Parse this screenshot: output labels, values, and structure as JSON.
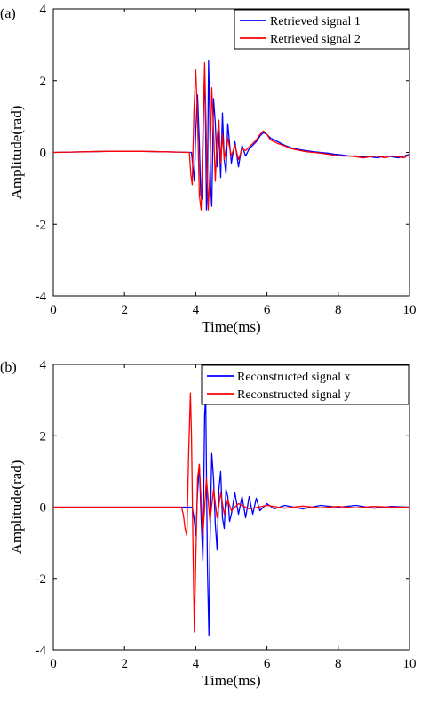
{
  "colors": {
    "signal_a": "#0000ff",
    "signal_b": "#ff0000",
    "axis": "#000000"
  },
  "chart_data": [
    {
      "type": "line",
      "panel_label": "(a)",
      "xlabel": "Time(ms)",
      "ylabel": "Amplitude(rad)",
      "xlim": [
        0,
        10
      ],
      "ylim": [
        -4,
        4
      ],
      "xticks": [
        0,
        2,
        4,
        6,
        8,
        10
      ],
      "yticks": [
        -4,
        -2,
        0,
        2,
        4
      ],
      "grid": false,
      "legend_position": "top-right",
      "series": [
        {
          "name": "Retrieved signal 1",
          "color": "#0000ff",
          "points": [
            [
              0,
              0
            ],
            [
              0.5,
              0.01
            ],
            [
              1,
              0.02
            ],
            [
              1.5,
              0.03
            ],
            [
              2,
              0.03
            ],
            [
              2.5,
              0.03
            ],
            [
              3,
              0.02
            ],
            [
              3.5,
              0.01
            ],
            [
              3.88,
              0
            ],
            [
              3.92,
              -0.4
            ],
            [
              3.96,
              -0.8
            ],
            [
              4.0,
              0.6
            ],
            [
              4.05,
              1.6
            ],
            [
              4.1,
              0.3
            ],
            [
              4.14,
              -1.2
            ],
            [
              4.18,
              -1.3
            ],
            [
              4.22,
              1.2
            ],
            [
              4.25,
              2.2
            ],
            [
              4.28,
              0.5
            ],
            [
              4.3,
              -1.6
            ],
            [
              4.33,
              -0.8
            ],
            [
              4.36,
              2.55
            ],
            [
              4.39,
              1.2
            ],
            [
              4.42,
              -1.0
            ],
            [
              4.45,
              -1.5
            ],
            [
              4.5,
              1.5
            ],
            [
              4.55,
              0.8
            ],
            [
              4.6,
              -0.4
            ],
            [
              4.65,
              0.6
            ],
            [
              4.7,
              -0.7
            ],
            [
              4.75,
              1.1
            ],
            [
              4.8,
              -0.2
            ],
            [
              4.85,
              -0.6
            ],
            [
              4.9,
              0.8
            ],
            [
              5.0,
              -0.3
            ],
            [
              5.1,
              0.3
            ],
            [
              5.2,
              -0.4
            ],
            [
              5.3,
              0.2
            ],
            [
              5.4,
              -0.1
            ],
            [
              5.5,
              0.1
            ],
            [
              5.6,
              0.2
            ],
            [
              5.7,
              0.3
            ],
            [
              5.8,
              0.45
            ],
            [
              5.9,
              0.55
            ],
            [
              6.0,
              0.5
            ],
            [
              6.1,
              0.4
            ],
            [
              6.2,
              0.35
            ],
            [
              6.3,
              0.3
            ],
            [
              6.5,
              0.2
            ],
            [
              6.7,
              0.12
            ],
            [
              6.9,
              0.08
            ],
            [
              7.1,
              0.05
            ],
            [
              7.3,
              0.02
            ],
            [
              7.5,
              0
            ],
            [
              7.7,
              -0.02
            ],
            [
              7.9,
              -0.05
            ],
            [
              8.1,
              -0.07
            ],
            [
              8.3,
              -0.1
            ],
            [
              8.5,
              -0.1
            ],
            [
              8.7,
              -0.12
            ],
            [
              8.9,
              -0.12
            ],
            [
              9.1,
              -0.15
            ],
            [
              9.3,
              -0.1
            ],
            [
              9.5,
              -0.12
            ],
            [
              9.7,
              -0.15
            ],
            [
              9.85,
              -0.1
            ],
            [
              10,
              -0.05
            ]
          ]
        },
        {
          "name": "Retrieved signal 2",
          "color": "#ff0000",
          "points": [
            [
              0,
              0
            ],
            [
              0.5,
              0.01
            ],
            [
              1,
              0.02
            ],
            [
              1.5,
              0.03
            ],
            [
              2,
              0.03
            ],
            [
              2.5,
              0.03
            ],
            [
              3,
              0.02
            ],
            [
              3.5,
              0.01
            ],
            [
              3.82,
              0
            ],
            [
              3.86,
              -0.6
            ],
            [
              3.9,
              -0.9
            ],
            [
              3.95,
              1.2
            ],
            [
              4.0,
              2.3
            ],
            [
              4.05,
              1.0
            ],
            [
              4.1,
              -1.2
            ],
            [
              4.15,
              -1.6
            ],
            [
              4.2,
              0.5
            ],
            [
              4.25,
              2.5
            ],
            [
              4.3,
              0.3
            ],
            [
              4.35,
              -1.6
            ],
            [
              4.4,
              -0.5
            ],
            [
              4.45,
              1.8
            ],
            [
              4.5,
              0.6
            ],
            [
              4.55,
              -0.8
            ],
            [
              4.6,
              0.4
            ],
            [
              4.65,
              0.9
            ],
            [
              4.7,
              -0.3
            ],
            [
              4.75,
              0.5
            ],
            [
              4.8,
              -0.2
            ],
            [
              4.9,
              0.4
            ],
            [
              5.0,
              -0.1
            ],
            [
              5.1,
              0.2
            ],
            [
              5.2,
              -0.2
            ],
            [
              5.3,
              0.1
            ],
            [
              5.4,
              0.05
            ],
            [
              5.5,
              0.15
            ],
            [
              5.6,
              0.25
            ],
            [
              5.7,
              0.35
            ],
            [
              5.8,
              0.5
            ],
            [
              5.9,
              0.6
            ],
            [
              6.0,
              0.5
            ],
            [
              6.1,
              0.35
            ],
            [
              6.2,
              0.3
            ],
            [
              6.3,
              0.25
            ],
            [
              6.5,
              0.18
            ],
            [
              6.7,
              0.1
            ],
            [
              6.9,
              0.06
            ],
            [
              7.1,
              0.02
            ],
            [
              7.3,
              0
            ],
            [
              7.5,
              -0.02
            ],
            [
              7.7,
              -0.05
            ],
            [
              7.9,
              -0.08
            ],
            [
              8.1,
              -0.1
            ],
            [
              8.3,
              -0.1
            ],
            [
              8.5,
              -0.12
            ],
            [
              8.7,
              -0.15
            ],
            [
              8.9,
              -0.12
            ],
            [
              9.1,
              -0.1
            ],
            [
              9.3,
              -0.15
            ],
            [
              9.5,
              -0.1
            ],
            [
              9.7,
              -0.12
            ],
            [
              9.85,
              -0.15
            ],
            [
              10,
              -0.05
            ]
          ]
        }
      ]
    },
    {
      "type": "line",
      "panel_label": "(b)",
      "xlabel": "Time(ms)",
      "ylabel": "Amplitude(rad)",
      "xlim": [
        0,
        10
      ],
      "ylim": [
        -4,
        4
      ],
      "xticks": [
        0,
        2,
        4,
        6,
        8,
        10
      ],
      "yticks": [
        -4,
        -2,
        0,
        2,
        4
      ],
      "grid": false,
      "legend_position": "top-right",
      "series": [
        {
          "name": "Reconstructed signal x",
          "color": "#0000ff",
          "points": [
            [
              0,
              0
            ],
            [
              1,
              0
            ],
            [
              2,
              0
            ],
            [
              3,
              0
            ],
            [
              3.9,
              0
            ],
            [
              3.95,
              -0.3
            ],
            [
              4.0,
              -0.8
            ],
            [
              4.05,
              0.4
            ],
            [
              4.1,
              1.2
            ],
            [
              4.15,
              -0.3
            ],
            [
              4.2,
              -1.5
            ],
            [
              4.25,
              2.6
            ],
            [
              4.28,
              3.1
            ],
            [
              4.3,
              1.0
            ],
            [
              4.33,
              -1.8
            ],
            [
              4.37,
              -3.6
            ],
            [
              4.4,
              -1.0
            ],
            [
              4.45,
              1.5
            ],
            [
              4.5,
              0.8
            ],
            [
              4.55,
              -0.5
            ],
            [
              4.6,
              -1.2
            ],
            [
              4.65,
              0.5
            ],
            [
              4.7,
              1.0
            ],
            [
              4.75,
              -0.3
            ],
            [
              4.8,
              -0.6
            ],
            [
              4.85,
              0.5
            ],
            [
              4.9,
              0.3
            ],
            [
              4.95,
              -0.4
            ],
            [
              5.0,
              -0.2
            ],
            [
              5.1,
              0.4
            ],
            [
              5.2,
              -0.2
            ],
            [
              5.3,
              0.3
            ],
            [
              5.4,
              -0.3
            ],
            [
              5.5,
              0.3
            ],
            [
              5.6,
              -0.2
            ],
            [
              5.7,
              0.25
            ],
            [
              5.8,
              -0.1
            ],
            [
              6.0,
              0.1
            ],
            [
              6.2,
              -0.05
            ],
            [
              6.5,
              0.05
            ],
            [
              7.0,
              -0.05
            ],
            [
              7.5,
              0.05
            ],
            [
              8.0,
              0
            ],
            [
              8.5,
              0.05
            ],
            [
              9.0,
              -0.03
            ],
            [
              9.5,
              0.02
            ],
            [
              10,
              0
            ]
          ]
        },
        {
          "name": "Reconstructed signal y",
          "color": "#ff0000",
          "points": [
            [
              0,
              0
            ],
            [
              1,
              0
            ],
            [
              2,
              0
            ],
            [
              3,
              0
            ],
            [
              3.6,
              0
            ],
            [
              3.65,
              -0.2
            ],
            [
              3.7,
              -0.6
            ],
            [
              3.75,
              -0.8
            ],
            [
              3.8,
              1.5
            ],
            [
              3.85,
              3.2
            ],
            [
              3.88,
              2.0
            ],
            [
              3.92,
              -1.0
            ],
            [
              3.96,
              -3.5
            ],
            [
              4.0,
              -1.5
            ],
            [
              4.05,
              0.8
            ],
            [
              4.1,
              1.2
            ],
            [
              4.15,
              0.2
            ],
            [
              4.2,
              -0.8
            ],
            [
              4.3,
              0.8
            ],
            [
              4.4,
              -0.4
            ],
            [
              4.5,
              0.5
            ],
            [
              4.6,
              -0.3
            ],
            [
              4.7,
              0.4
            ],
            [
              4.8,
              -0.2
            ],
            [
              4.9,
              0.2
            ],
            [
              5.0,
              -0.1
            ],
            [
              5.2,
              0.1
            ],
            [
              5.5,
              -0.05
            ],
            [
              6.0,
              0.05
            ],
            [
              6.5,
              -0.03
            ],
            [
              7.0,
              0.03
            ],
            [
              7.5,
              -0.02
            ],
            [
              8.0,
              0.02
            ],
            [
              8.5,
              -0.02
            ],
            [
              9.0,
              0.02
            ],
            [
              9.5,
              0
            ],
            [
              10,
              0
            ]
          ]
        }
      ]
    }
  ]
}
